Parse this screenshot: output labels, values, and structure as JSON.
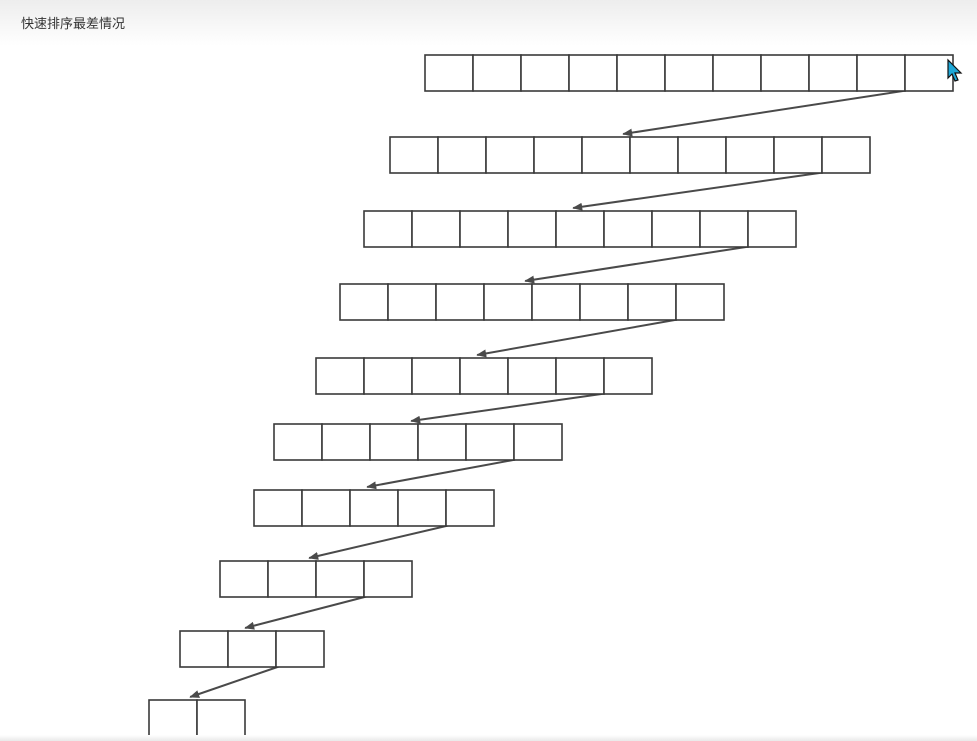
{
  "page": {
    "title": "快速排序最差情况"
  },
  "diagram": {
    "pivot_color": "#f03c28",
    "cell_color": "#ffffff",
    "stroke_color": "#3a3a3a",
    "rows": [
      {
        "cells": 11
      },
      {
        "cells": 10
      },
      {
        "cells": 9
      },
      {
        "cells": 8
      },
      {
        "cells": 7
      },
      {
        "cells": 6
      },
      {
        "cells": 5
      },
      {
        "cells": 4
      },
      {
        "cells": 3
      },
      {
        "cells": 2
      }
    ]
  }
}
